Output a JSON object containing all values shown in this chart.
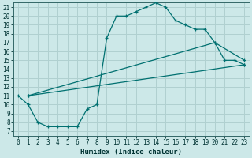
{
  "xlabel": "Humidex (Indice chaleur)",
  "background_color": "#cce8e8",
  "grid_color": "#b0d0d0",
  "line_color": "#007070",
  "xlim": [
    -0.5,
    23.5
  ],
  "ylim": [
    6.5,
    21.5
  ],
  "xticks": [
    0,
    1,
    2,
    3,
    4,
    5,
    6,
    7,
    8,
    9,
    10,
    11,
    12,
    13,
    14,
    15,
    16,
    17,
    18,
    19,
    20,
    21,
    22,
    23
  ],
  "yticks": [
    7,
    8,
    9,
    10,
    11,
    12,
    13,
    14,
    15,
    16,
    17,
    18,
    19,
    20,
    21
  ],
  "curve1_x": [
    0,
    1,
    2,
    3,
    4,
    5,
    6,
    7,
    8,
    9,
    10,
    11,
    12,
    13,
    14,
    15,
    16,
    17,
    18,
    19,
    20,
    21,
    22,
    23
  ],
  "curve1_y": [
    11,
    10,
    8,
    7.5,
    7.5,
    7.5,
    7.5,
    9.5,
    10,
    17.5,
    20,
    20,
    20.5,
    21,
    21.5,
    21,
    19.5,
    19,
    18.5,
    18.5,
    17,
    15,
    15,
    14.5
  ],
  "curve2_x": [
    1,
    23
  ],
  "curve2_y": [
    11,
    14.5
  ],
  "curve3_x": [
    1,
    20,
    23
  ],
  "curve3_y": [
    11,
    17,
    15
  ]
}
